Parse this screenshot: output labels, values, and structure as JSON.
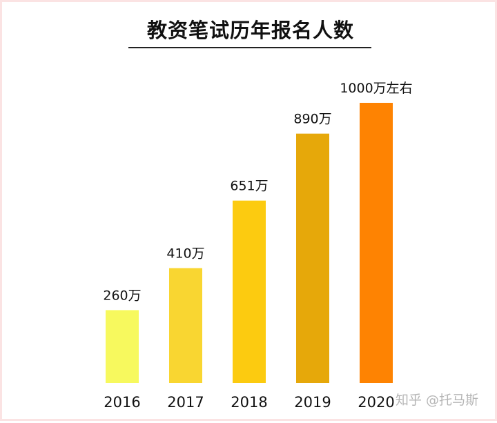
{
  "chart_data": {
    "type": "bar",
    "title": "教资笔试历年报名人数",
    "categories": [
      "2016",
      "2017",
      "2018",
      "2019",
      "2020"
    ],
    "values": [
      260,
      410,
      651,
      890,
      1000
    ],
    "data_labels": [
      "260万",
      "410万",
      "651万",
      "890万",
      "1000万左右"
    ],
    "colors": [
      "#f7f95e",
      "#f9d631",
      "#fccb10",
      "#e6a80a",
      "#fe8302"
    ],
    "ylim": [
      0,
      1000
    ],
    "grid": false,
    "legend": "none"
  },
  "watermark": "知乎 @托马斯"
}
